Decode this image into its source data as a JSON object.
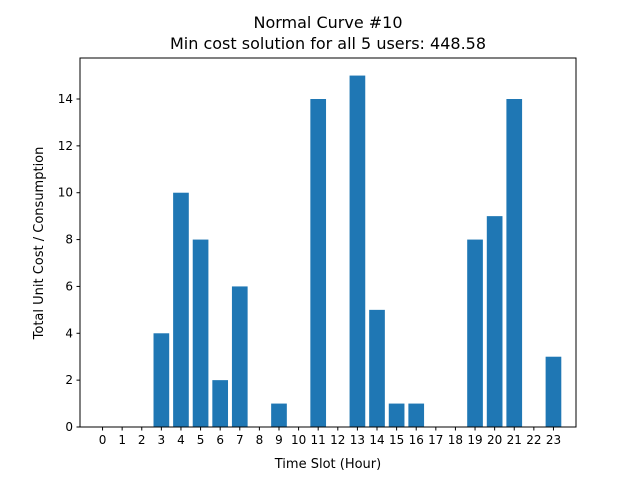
{
  "chart_data": {
    "type": "bar",
    "title": "Normal Curve #10",
    "subtitle": "Min cost solution for all 5 users: 448.58",
    "xlabel": "Time Slot (Hour)",
    "ylabel": "Total Unit Cost / Consumption",
    "categories": [
      "0",
      "1",
      "2",
      "3",
      "4",
      "5",
      "6",
      "7",
      "8",
      "9",
      "10",
      "11",
      "12",
      "13",
      "14",
      "15",
      "16",
      "17",
      "18",
      "19",
      "20",
      "21",
      "22",
      "23"
    ],
    "values": [
      0,
      0,
      0,
      4,
      10,
      8,
      2,
      6,
      0,
      1,
      0,
      14,
      0,
      15,
      5,
      1,
      1,
      0,
      0,
      8,
      9,
      14,
      0,
      3
    ],
    "ylim": [
      0,
      15.75
    ],
    "yticks": [
      0,
      2,
      4,
      6,
      8,
      10,
      12,
      14
    ],
    "grid": false,
    "bar_color": "#1f77b4"
  }
}
